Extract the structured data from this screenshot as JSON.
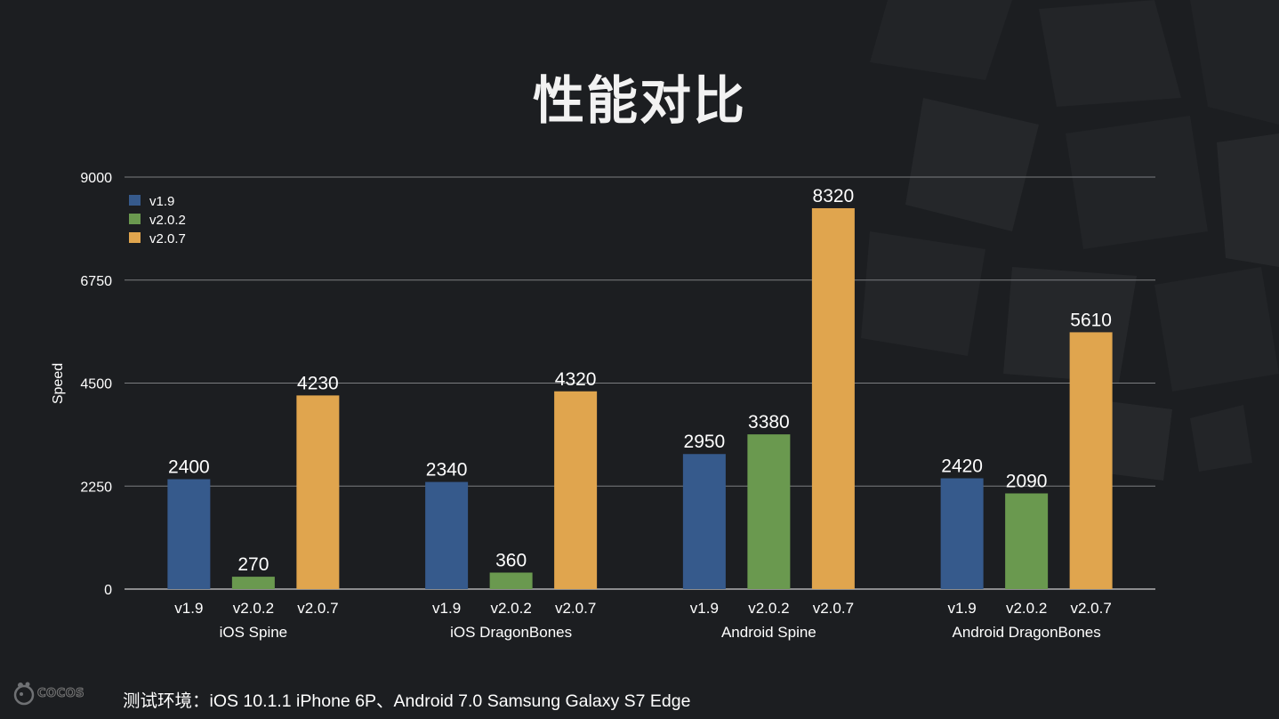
{
  "slide": {
    "title": "性能对比",
    "footer": "测试环境：iOS 10.1.1 iPhone 6P、Android 7.0 Samsung Galaxy S7 Edge",
    "logo_text": "COCOS"
  },
  "chart_data": {
    "type": "bar",
    "title": "",
    "xlabel": "",
    "ylabel": "Speed",
    "ylim": [
      0,
      9000
    ],
    "yticks": [
      0,
      2250,
      4500,
      6750,
      9000
    ],
    "grid": true,
    "legend_position": "top-left",
    "groups": [
      "iOS Spine",
      "iOS DragonBones",
      "Android Spine",
      "Android DragonBones"
    ],
    "series": [
      {
        "name": "v1.9",
        "color": "#365a8c",
        "values": [
          2400,
          2340,
          2950,
          2420
        ]
      },
      {
        "name": "v2.0.2",
        "color": "#6a994f",
        "values": [
          270,
          360,
          3380,
          2090
        ]
      },
      {
        "name": "v2.0.7",
        "color": "#e0a54e",
        "values": [
          4230,
          4320,
          8320,
          5610
        ]
      }
    ]
  }
}
